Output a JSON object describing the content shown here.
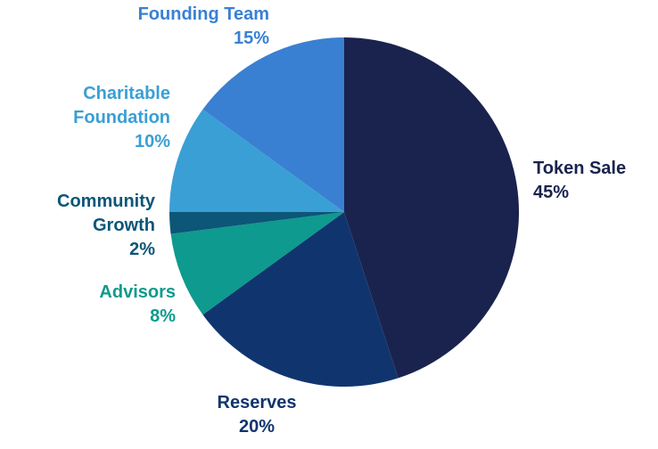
{
  "chart_data": {
    "type": "pie",
    "title": "",
    "slices": [
      {
        "name": "Token Sale",
        "label_lines": [
          "Token Sale"
        ],
        "percent_label": "45%",
        "value": 45,
        "color": "#1a234e"
      },
      {
        "name": "Reserves",
        "label_lines": [
          "Reserves"
        ],
        "percent_label": "20%",
        "value": 20,
        "color": "#10356e"
      },
      {
        "name": "Advisors",
        "label_lines": [
          "Advisors"
        ],
        "percent_label": "8%",
        "value": 8,
        "color": "#0e9a8e"
      },
      {
        "name": "Community Growth",
        "label_lines": [
          "Community",
          "Growth"
        ],
        "percent_label": "2%",
        "value": 2,
        "color": "#0c5678"
      },
      {
        "name": "Charitable Foundation",
        "label_lines": [
          "Charitable",
          "Foundation"
        ],
        "percent_label": "10%",
        "value": 10,
        "color": "#3a9fd5"
      },
      {
        "name": "Founding Team",
        "label_lines": [
          "Founding Team"
        ],
        "percent_label": "15%",
        "value": 15,
        "color": "#3a80d2"
      }
    ],
    "start_angle": "12 o'clock",
    "direction": "clockwise",
    "legend": "none"
  }
}
